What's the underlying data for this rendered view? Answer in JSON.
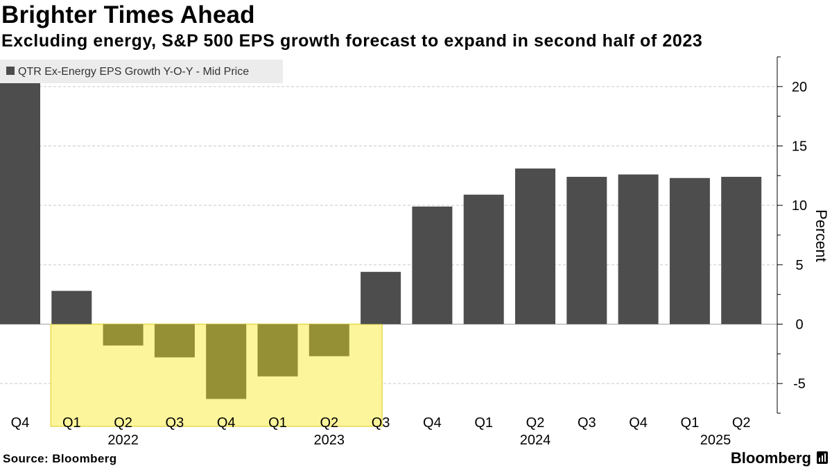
{
  "header": {
    "title": "Brighter Times Ahead",
    "subtitle": "Excluding energy, S&P 500 EPS growth forecast to expand in second half of 2023"
  },
  "footer": {
    "source": "Source: Bloomberg",
    "brand": "Bloomberg"
  },
  "colors": {
    "bar": "#4d4d4d",
    "highlight_bar": "#958f36",
    "highlight_fill": "#fdf59b",
    "highlight_border": "#e6d94a",
    "grid": "#c8c8c8",
    "axis": "#000000"
  },
  "chart_data": {
    "type": "bar",
    "title": "Brighter Times Ahead",
    "subtitle": "Excluding energy, S&P 500 EPS growth forecast to expand in second half of 2023",
    "legend": "QTR Ex-Energy EPS Growth Y-O-Y - Mid Price",
    "legend_position": "top-left",
    "ylabel": "Percent",
    "xlabel": "",
    "ylim": [
      -7.5,
      22.5
    ],
    "yticks": [
      -5,
      0,
      5,
      10,
      15,
      20
    ],
    "grid": true,
    "categories": [
      "Q4",
      "Q1",
      "Q2",
      "Q3",
      "Q4",
      "Q1",
      "Q2",
      "Q3",
      "Q4",
      "Q1",
      "Q2",
      "Q3",
      "Q4",
      "Q1",
      "Q2"
    ],
    "year_labels": [
      {
        "label": "2022",
        "index": 2
      },
      {
        "label": "2023",
        "index": 6
      },
      {
        "label": "2024",
        "index": 10
      },
      {
        "label": "2025",
        "index": 13.5
      }
    ],
    "values": [
      20.3,
      2.8,
      -1.8,
      -2.8,
      -6.3,
      -4.4,
      -2.7,
      4.4,
      9.9,
      10.9,
      13.1,
      12.4,
      12.6,
      12.3,
      12.4
    ],
    "highlight_range": {
      "from_index": 1,
      "to_index": 7,
      "y_from": -8.6,
      "y_to": 0
    }
  }
}
